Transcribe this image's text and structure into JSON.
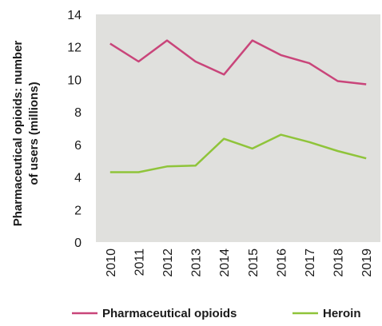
{
  "chart_data": {
    "type": "line",
    "title": "",
    "xlabel": "",
    "ylabel_line1": "Pharmaceutical opioids: number",
    "ylabel_line2": "of users (millions)",
    "categories": [
      "2010",
      "2011",
      "2012",
      "2013",
      "2014",
      "2015",
      "2016",
      "2017",
      "2018",
      "2019"
    ],
    "ylim": [
      0,
      14
    ],
    "yticks": [
      "0",
      "2",
      "4",
      "6",
      "8",
      "10",
      "12",
      "14"
    ],
    "grid": false,
    "background": "#e0e0dd",
    "legend_position": "bottom",
    "series": [
      {
        "name": "Pharmaceutical opioids",
        "color": "#c9457a",
        "values": [
          12.2,
          11.1,
          12.4,
          11.1,
          10.3,
          12.4,
          11.5,
          11.0,
          9.9,
          9.7
        ]
      },
      {
        "name": "Heroin",
        "color": "#8fc43a",
        "values": [
          4.3,
          4.3,
          4.65,
          4.7,
          6.35,
          5.75,
          6.6,
          6.15,
          5.6,
          5.15
        ]
      }
    ]
  }
}
